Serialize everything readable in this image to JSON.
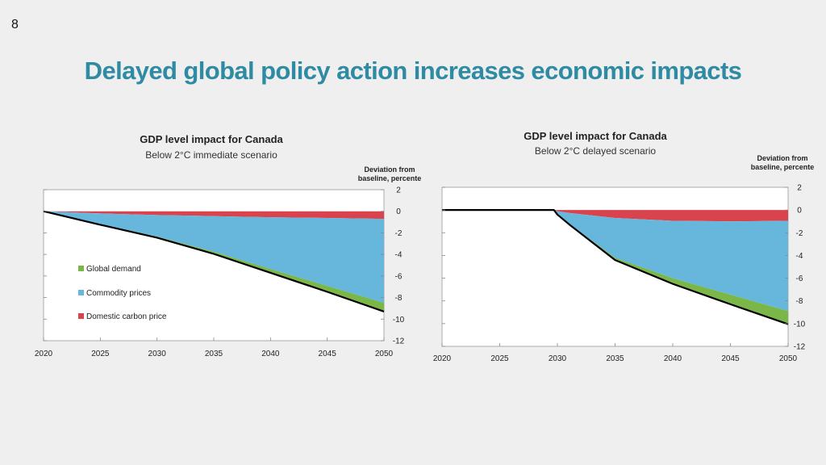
{
  "slide": {
    "number": "8",
    "title": "Delayed global policy action increases economic impacts"
  },
  "colors": {
    "global_demand": "#7ab648",
    "commodity_prices": "#67b7dc",
    "domestic_carbon_price": "#d9434e",
    "total_line": "#000000",
    "title": "#2f8aa3"
  },
  "chart_data": [
    {
      "type": "area",
      "title": "GDP level impact for Canada",
      "subtitle": "Below 2°C immediate scenario",
      "ylabel_line1": "Deviation from",
      "ylabel_line2": "baseline, percente",
      "x": [
        2020,
        2025,
        2030,
        2035,
        2040,
        2045,
        2050
      ],
      "ylim": [
        -12,
        2
      ],
      "y_ticks": [
        2,
        0,
        -2,
        -4,
        -6,
        -8,
        -10,
        -12
      ],
      "x_ticks": [
        2020,
        2025,
        2030,
        2035,
        2040,
        2045,
        2050
      ],
      "series": [
        {
          "name": "Domestic carbon price",
          "key": "domestic_carbon_price",
          "values": [
            0,
            -0.2,
            -0.35,
            -0.45,
            -0.55,
            -0.62,
            -0.7
          ]
        },
        {
          "name": "Commodity prices",
          "key": "commodity_prices",
          "values": [
            0,
            -1.0,
            -2.0,
            -3.3,
            -4.8,
            -6.3,
            -7.8
          ]
        },
        {
          "name": "Global demand",
          "key": "global_demand",
          "values": [
            0,
            -0.05,
            -0.1,
            -0.2,
            -0.35,
            -0.55,
            -0.8
          ]
        }
      ],
      "total": [
        0,
        -1.25,
        -2.45,
        -3.95,
        -5.7,
        -7.47,
        -9.3
      ],
      "legend": [
        {
          "label": "Global demand",
          "key": "global_demand"
        },
        {
          "label": "Commodity prices",
          "key": "commodity_prices"
        },
        {
          "label": "Domestic carbon price",
          "key": "domestic_carbon_price"
        }
      ]
    },
    {
      "type": "area",
      "title": "GDP level impact for Canada",
      "subtitle": "Below 2°C delayed scenario",
      "ylabel_line1": "Deviation from",
      "ylabel_line2": "baseline, percente",
      "x": [
        2020,
        2029.7,
        2030,
        2031,
        2035,
        2040,
        2045,
        2050
      ],
      "ylim": [
        -12,
        2
      ],
      "y_ticks": [
        2,
        0,
        -2,
        -4,
        -6,
        -8,
        -10,
        -12
      ],
      "x_ticks": [
        2020,
        2025,
        2030,
        2035,
        2040,
        2045,
        2050
      ],
      "series": [
        {
          "name": "Domestic carbon price",
          "key": "domestic_carbon_price",
          "values": [
            0,
            0,
            -0.1,
            -0.25,
            -0.7,
            -0.95,
            -1.0,
            -0.95
          ]
        },
        {
          "name": "Commodity prices",
          "key": "commodity_prices",
          "values": [
            0,
            0,
            -0.3,
            -0.95,
            -3.5,
            -5.05,
            -6.45,
            -7.95
          ]
        },
        {
          "name": "Global demand",
          "key": "global_demand",
          "values": [
            0,
            0,
            0,
            -0.05,
            -0.2,
            -0.5,
            -0.85,
            -1.15
          ]
        }
      ],
      "total": [
        0,
        0,
        -0.4,
        -1.25,
        -4.4,
        -6.5,
        -8.3,
        -10.05
      ]
    }
  ]
}
